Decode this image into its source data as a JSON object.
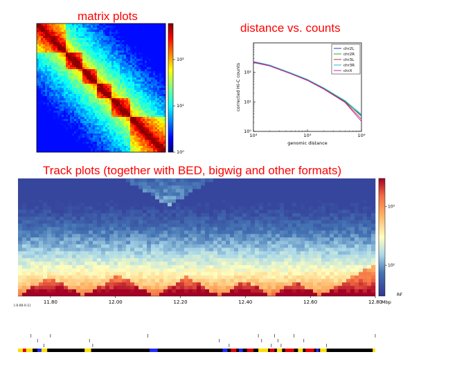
{
  "titles": {
    "matrix": "matrix plots",
    "distance": "distance vs. counts",
    "track": "Track plots (together with BED, bigwig and other formats)"
  },
  "colors": {
    "title": "#ff0000"
  },
  "chart_data": [
    {
      "type": "heatmap",
      "name_id": "matrix-plot",
      "colorbar": {
        "scale": "log",
        "ticks": [
          "10⁰",
          "10¹",
          "10²"
        ],
        "tick_values": [
          1,
          10,
          100
        ],
        "range": [
          1,
          600
        ]
      },
      "structure": {
        "tad_boundaries": [
          0.0,
          0.22,
          0.35,
          0.47,
          0.58,
          0.72,
          1.0
        ]
      }
    },
    {
      "type": "line",
      "name_id": "distance-vs-counts",
      "xlabel": "genomic distance",
      "ylabel": "corrected Hi-C counts",
      "xscale": "log",
      "yscale": "log",
      "xlim": [
        10000,
        1000000
      ],
      "ylim": [
        1,
        1000
      ],
      "xticks": [
        "10⁴",
        "10⁵",
        "10⁶"
      ],
      "yticks": [
        "10⁰",
        "10¹",
        "10²"
      ],
      "legend": "top-right",
      "series": [
        {
          "name": "chr2L",
          "color": "#1f3bd6",
          "x": [
            10000,
            20000,
            50000,
            100000,
            200000,
            500000,
            1000000
          ],
          "y": [
            220,
            170,
            90,
            55,
            28,
            10,
            3.5
          ]
        },
        {
          "name": "chr2R",
          "color": "#2ca02c",
          "x": [
            10000,
            20000,
            50000,
            100000,
            200000,
            500000,
            1000000
          ],
          "y": [
            230,
            175,
            92,
            56,
            29,
            10.5,
            3.2
          ]
        },
        {
          "name": "chr3L",
          "color": "#d62728",
          "x": [
            10000,
            20000,
            50000,
            100000,
            200000,
            500000,
            1000000
          ],
          "y": [
            225,
            172,
            91,
            55,
            28,
            9.8,
            2.6
          ]
        },
        {
          "name": "chr3R",
          "color": "#17becf",
          "x": [
            10000,
            20000,
            50000,
            100000,
            200000,
            500000,
            1000000
          ],
          "y": [
            235,
            178,
            95,
            58,
            30,
            11,
            3.8
          ]
        },
        {
          "name": "chrX",
          "color": "#c020c0",
          "x": [
            10000,
            20000,
            50000,
            100000,
            200000,
            500000,
            1000000
          ],
          "y": [
            215,
            165,
            88,
            53,
            27,
            9.5,
            2.2
          ]
        }
      ]
    },
    {
      "type": "heatmap",
      "name_id": "track-plot",
      "colorbar": {
        "scale": "log",
        "ticks": [
          "10²",
          "10³"
        ],
        "tick_values": [
          100,
          1000
        ],
        "range": [
          30,
          3000
        ],
        "label": "RF"
      },
      "xlim": [
        11.7,
        12.8
      ],
      "xticks": [
        "11.80",
        "12.00",
        "12.20",
        "12.40",
        "12.60",
        "12.80"
      ],
      "xtick_values": [
        11.8,
        12.0,
        12.2,
        12.4,
        12.6,
        12.8
      ],
      "xunit": "Mbp",
      "range_label": "[-0.00-0.1]",
      "tad_boundaries": [
        11.7,
        11.9,
        12.12,
        12.32,
        12.48,
        12.63,
        12.8
      ],
      "bed_ticks": [
        11.74,
        11.76,
        11.78,
        11.8,
        11.92,
        11.93,
        12.1,
        12.32,
        12.35,
        12.44,
        12.45,
        12.48,
        12.49,
        12.5,
        12.51,
        12.55,
        12.58,
        12.65,
        12.8
      ],
      "bed_segments": [
        {
          "start": 11.7,
          "end": 11.715,
          "color": "#ffdf00"
        },
        {
          "start": 11.715,
          "end": 11.725,
          "color": "#e00000"
        },
        {
          "start": 11.725,
          "end": 11.745,
          "color": "#ffdf00"
        },
        {
          "start": 11.76,
          "end": 11.772,
          "color": "#1f2bff"
        },
        {
          "start": 11.772,
          "end": 11.79,
          "color": "#ffdf00"
        },
        {
          "start": 11.905,
          "end": 11.925,
          "color": "#ffdf00"
        },
        {
          "start": 12.105,
          "end": 12.13,
          "color": "#1f2bff"
        },
        {
          "start": 12.33,
          "end": 12.345,
          "color": "#1f2bff"
        },
        {
          "start": 12.355,
          "end": 12.372,
          "color": "#e00000"
        },
        {
          "start": 12.38,
          "end": 12.392,
          "color": "#1f2bff"
        },
        {
          "start": 12.405,
          "end": 12.425,
          "color": "#e00000"
        },
        {
          "start": 12.44,
          "end": 12.47,
          "color": "#ffdf00"
        },
        {
          "start": 12.475,
          "end": 12.49,
          "color": "#e00000"
        },
        {
          "start": 12.497,
          "end": 12.513,
          "color": "#ffdf00"
        },
        {
          "start": 12.522,
          "end": 12.55,
          "color": "#e00000"
        },
        {
          "start": 12.562,
          "end": 12.577,
          "color": "#ffdf00"
        },
        {
          "start": 12.585,
          "end": 12.612,
          "color": "#e00000"
        },
        {
          "start": 12.618,
          "end": 12.626,
          "color": "#1f2bff"
        },
        {
          "start": 12.63,
          "end": 12.65,
          "color": "#ffdf00"
        },
        {
          "start": 12.792,
          "end": 12.8,
          "color": "#ffdf00"
        }
      ]
    }
  ]
}
